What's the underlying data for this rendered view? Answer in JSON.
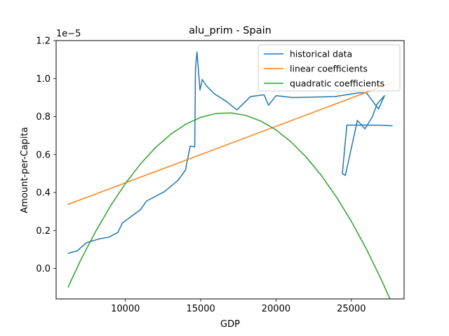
{
  "chart_data": {
    "type": "line",
    "title": "alu_prim - Spain",
    "xlabel": "GDP",
    "ylabel": "Amount-per-Capita",
    "y_offset_label": "1e−5",
    "xlim": [
      5400,
      28500
    ],
    "ylim": [
      -0.16,
      1.2
    ],
    "xticks": [
      10000,
      15000,
      20000,
      25000
    ],
    "xtick_labels": [
      "10000",
      "15000",
      "20000",
      "25000"
    ],
    "yticks": [
      0.0,
      0.2,
      0.4,
      0.6,
      0.8,
      1.0,
      1.2
    ],
    "ytick_labels": [
      "0.0",
      "0.2",
      "0.4",
      "0.6",
      "0.8",
      "1.0",
      "1.2"
    ],
    "grid": false,
    "legend_position": "upper-right",
    "series": [
      {
        "name": "historical data",
        "color": "#1f77b4",
        "x": [
          6200,
          6800,
          7400,
          8200,
          8900,
          9500,
          9800,
          11000,
          11400,
          12600,
          13500,
          14000,
          14050,
          14300,
          14600,
          14620,
          14650,
          14700,
          14750,
          14950,
          15100,
          15400,
          15900,
          16700,
          17400,
          18300,
          19200,
          19500,
          20000,
          21100,
          23900,
          25500,
          26000,
          26800,
          27200,
          26700,
          26400,
          25900,
          25400,
          24600,
          24400,
          24700,
          26500,
          27700
        ],
        "y": [
          0.08,
          0.093,
          0.135,
          0.155,
          0.165,
          0.19,
          0.24,
          0.31,
          0.355,
          0.405,
          0.465,
          0.52,
          0.545,
          0.645,
          0.64,
          0.78,
          1.05,
          1.1,
          1.14,
          0.94,
          0.995,
          0.96,
          0.92,
          0.88,
          0.835,
          0.905,
          0.915,
          0.86,
          0.91,
          0.9,
          0.905,
          0.925,
          0.925,
          0.84,
          0.91,
          0.865,
          0.8,
          0.735,
          0.78,
          0.49,
          0.5,
          0.755,
          0.755,
          0.752
        ]
      },
      {
        "name": "linear coefficients",
        "color": "#ff7f0e",
        "x": [
          6200,
          27700
        ],
        "y": [
          0.338,
          0.978
        ]
      },
      {
        "name": "quadratic coefficients",
        "color": "#2ca02c",
        "x": [
          6200,
          7000,
          8000,
          9000,
          10000,
          11000,
          12000,
          13000,
          14000,
          15000,
          16000,
          17000,
          18000,
          19000,
          20000,
          21000,
          22000,
          23000,
          24000,
          25000,
          26000,
          27000,
          27700
        ],
        "y": [
          -0.0973,
          0.0393,
          0.192,
          0.3281,
          0.4476,
          0.5505,
          0.6368,
          0.7065,
          0.7596,
          0.7961,
          0.816,
          0.8193,
          0.8059,
          0.776,
          0.7295,
          0.6664,
          0.5867,
          0.4904,
          0.3775,
          0.248,
          0.1019,
          -0.0608,
          -0.1852
        ]
      }
    ]
  }
}
